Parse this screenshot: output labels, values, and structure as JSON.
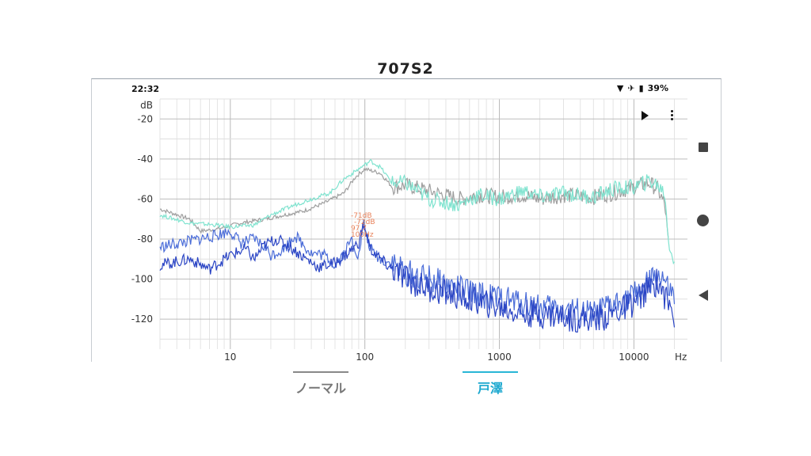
{
  "page": {
    "title": "707S2"
  },
  "status_bar": {
    "time": "22:32",
    "battery": "39%"
  },
  "tabs": [
    {
      "label": "ノーマル",
      "active": false
    },
    {
      "label": "戸澤",
      "active": true
    }
  ],
  "chart_data": {
    "type": "line",
    "x_scale": "log",
    "xlim": [
      3,
      25000
    ],
    "ylim": [
      -135,
      -10
    ],
    "x_ticks": [
      10,
      100,
      1000,
      10000
    ],
    "x_tick_labels": [
      "10",
      "100",
      "1000",
      "10000"
    ],
    "x_unit": "Hz",
    "y_ticks": [
      -20,
      -40,
      -60,
      -80,
      -100,
      -120
    ],
    "y_tick_labels": [
      "-20",
      "-40",
      "-60",
      "-80",
      "-100",
      "-120"
    ],
    "y_unit": "dB",
    "grid": true,
    "annotation": {
      "lines": [
        "-71dB",
        "-72dB",
        "97.7",
        "100Hz"
      ],
      "color": "#e8825a"
    },
    "series": [
      {
        "color": "#9e9e9e",
        "x": [
          3,
          5,
          6,
          8,
          12,
          18,
          25,
          35,
          50,
          70,
          85,
          100,
          130,
          160,
          200,
          300,
          500,
          700,
          1000,
          1500,
          2000,
          3000,
          5000,
          7000,
          10000,
          13000,
          15000,
          17000,
          18000
        ],
        "y": [
          -65,
          -70,
          -76,
          -75,
          -72,
          -70,
          -68,
          -66,
          -62,
          -57,
          -49,
          -45,
          -47,
          -54,
          -53,
          -56,
          -60,
          -58,
          -59,
          -58,
          -60,
          -58,
          -59,
          -57,
          -54,
          -52,
          -55,
          -63,
          -82
        ]
      },
      {
        "color": "#7fe3cf",
        "x": [
          3,
          5,
          8,
          10,
          15,
          20,
          30,
          40,
          55,
          70,
          90,
          110,
          130,
          160,
          200,
          300,
          500,
          700,
          1000,
          1500,
          2000,
          3000,
          5000,
          7000,
          10000,
          13000,
          15000,
          17000,
          18000,
          20000
        ],
        "y": [
          -68,
          -72,
          -73,
          -74,
          -73,
          -68,
          -63,
          -60,
          -57,
          -50,
          -45,
          -41,
          -44,
          -52,
          -52,
          -60,
          -63,
          -58,
          -60,
          -56,
          -59,
          -57,
          -59,
          -55,
          -54,
          -51,
          -53,
          -57,
          -80,
          -92
        ]
      },
      {
        "color": "#4a6cd8",
        "x": [
          3,
          5,
          8,
          10,
          12,
          15,
          18,
          20,
          25,
          30,
          40,
          50,
          60,
          70,
          80,
          90,
          97.7,
          110,
          130,
          170,
          200,
          300,
          500,
          700,
          1000,
          1500,
          2000,
          3000,
          5000,
          7000,
          10000,
          13000,
          16000,
          18000,
          20000
        ],
        "y": [
          -84,
          -81,
          -78,
          -76,
          -82,
          -80,
          -84,
          -88,
          -85,
          -78,
          -87,
          -88,
          -93,
          -87,
          -80,
          -89,
          -72,
          -85,
          -90,
          -93,
          -97,
          -100,
          -105,
          -108,
          -110,
          -112,
          -114,
          -115,
          -118,
          -113,
          -108,
          -102,
          -98,
          -106,
          -110
        ]
      },
      {
        "color": "#2a44c4",
        "x": [
          3,
          5,
          7,
          10,
          13,
          15,
          18,
          22,
          28,
          35,
          45,
          60,
          75,
          90,
          97.7,
          110,
          140,
          180,
          250,
          400,
          600,
          1000,
          1500,
          2500,
          4000,
          6000,
          9000,
          12000,
          15000,
          18000,
          20000
        ],
        "y": [
          -93,
          -90,
          -95,
          -88,
          -85,
          -90,
          -83,
          -80,
          -84,
          -89,
          -94,
          -92,
          -87,
          -82,
          -73,
          -85,
          -92,
          -98,
          -103,
          -107,
          -110,
          -114,
          -117,
          -118,
          -120,
          -119,
          -114,
          -107,
          -101,
          -112,
          -118
        ]
      }
    ]
  }
}
